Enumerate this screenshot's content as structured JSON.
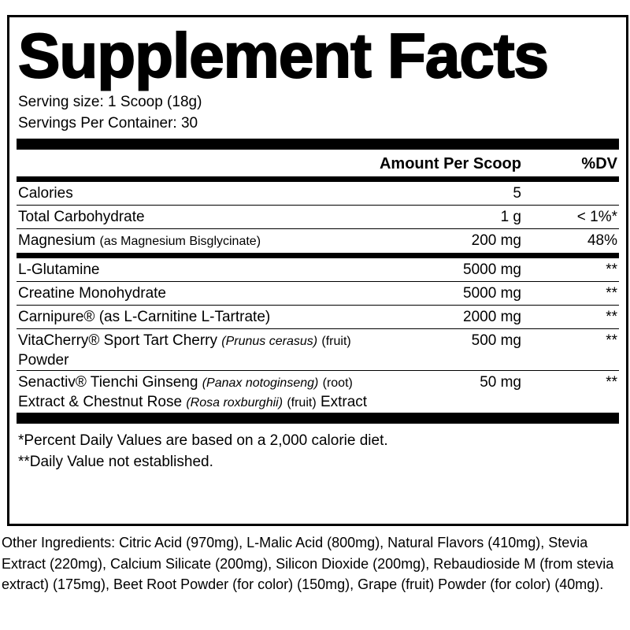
{
  "title": "Supplement Facts",
  "serving_size": "Serving size: 1 Scoop (18g)",
  "servings_per_container": "Servings Per Container: 30",
  "header": {
    "amount": "Amount Per Scoop",
    "dv": "%DV"
  },
  "sections": [
    {
      "rows": [
        {
          "name": [
            {
              "text": "Calories"
            }
          ],
          "amount": "5"
        },
        {
          "name": [
            {
              "text": "Total Carbohydrate"
            }
          ],
          "amount": "1 g",
          "dv": "< 1%*"
        },
        {
          "name": [
            {
              "text": "Magnesium"
            },
            {
              "text": "(as Magnesium Bisglycinate)",
              "small": true
            }
          ],
          "amount": "200 mg",
          "dv": "48%"
        }
      ]
    },
    {
      "rows": [
        {
          "name": [
            {
              "text": "L-Glutamine"
            }
          ],
          "amount": "5000 mg",
          "dv": "**"
        },
        {
          "name": [
            {
              "text": "Creatine Monohydrate"
            }
          ],
          "amount": "5000 mg",
          "dv": "**"
        },
        {
          "name": [
            {
              "text": "Carnipure® (as L-Carnitine L-Tartrate)"
            }
          ],
          "amount": "2000 mg",
          "dv": "**"
        },
        {
          "name": [
            {
              "text": "VitaCherry® Sport Tart Cherry"
            },
            {
              "text": "(Prunus cerasus)",
              "small": true,
              "italic": true
            },
            {
              "text": "(fruit)",
              "small": true
            },
            {
              "text": "Powder"
            }
          ],
          "amount": "500 mg",
          "dv": "**"
        },
        {
          "name": [
            {
              "text": "Senactiv® Tienchi Ginseng"
            },
            {
              "text": "(Panax notoginseng)",
              "small": true,
              "italic": true
            },
            {
              "text": "(root)",
              "small": true
            },
            {
              "text": "Extract & Chestnut Rose"
            },
            {
              "text": "(Rosa roxburghii)",
              "small": true,
              "italic": true
            },
            {
              "text": "(fruit)",
              "small": true
            },
            {
              "text": "Extract"
            }
          ],
          "amount": "50 mg",
          "dv": "**"
        }
      ]
    }
  ],
  "footnotes": [
    "*Percent Daily Values are based on a 2,000 calorie diet.",
    "**Daily Value not established."
  ],
  "other_ingredients": "Other Ingredients: Citric Acid (970mg), L-Malic Acid (800mg), Natural Flavors (410mg), Stevia Extract (220mg), Calcium Silicate (200mg), Silicon Dioxide (200mg), Rebaudioside M (from stevia extract) (175mg), Beet Root Powder (for color) (150mg), Grape (fruit) Powder (for color) (40mg)."
}
